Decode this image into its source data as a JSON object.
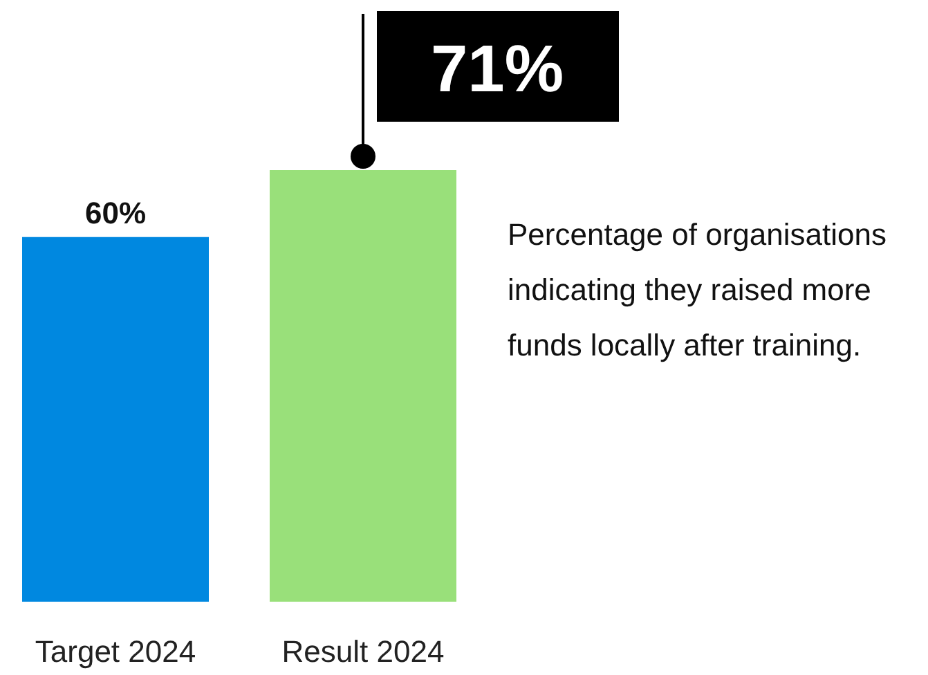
{
  "chart_data": {
    "type": "bar",
    "categories": [
      "Target 2024",
      "Result 2024"
    ],
    "values": [
      60,
      71
    ],
    "colors": [
      "#0088e0",
      "#99e07a"
    ],
    "value_labels": [
      "60%",
      "71%"
    ],
    "annotations": [
      "Percentage of organisations indicating they raised more funds locally after training."
    ]
  }
}
